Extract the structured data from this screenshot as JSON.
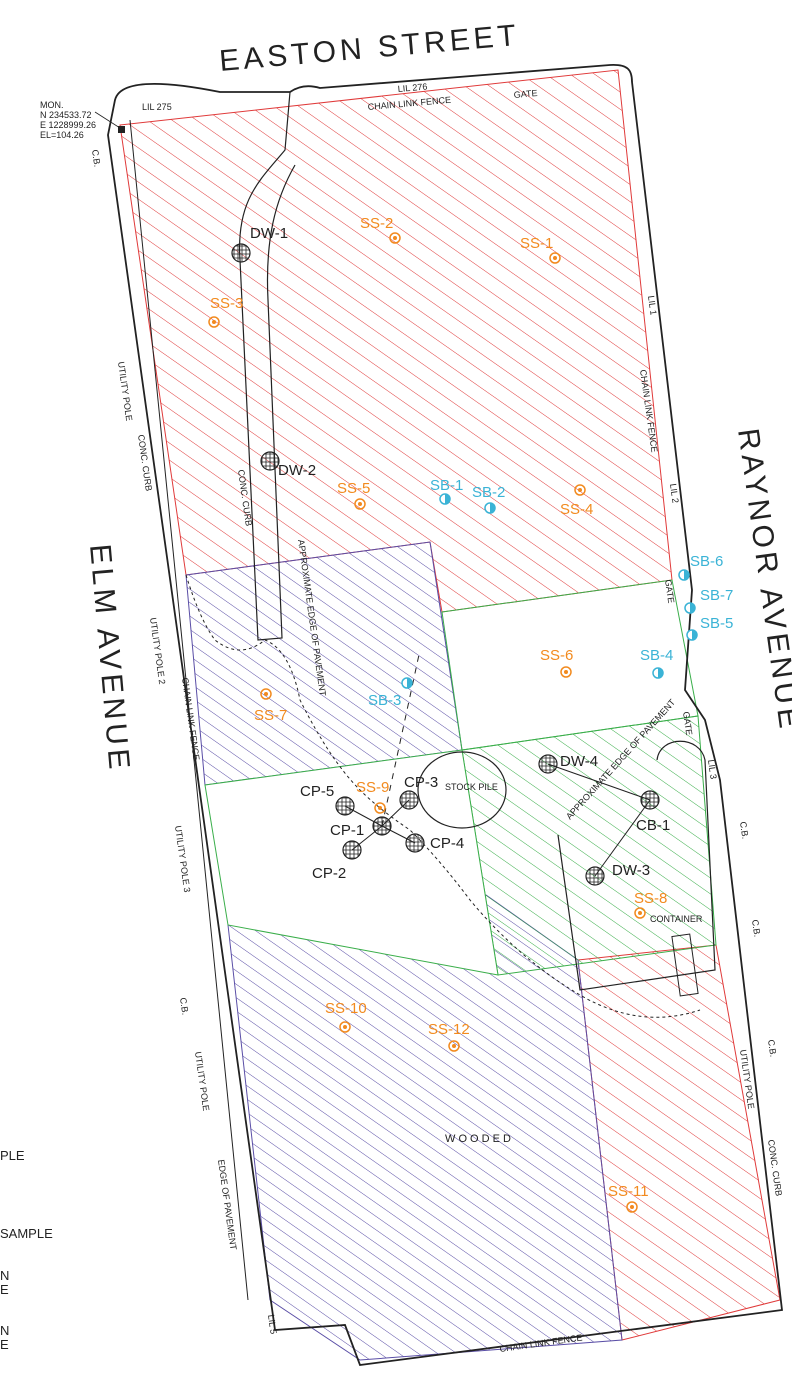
{
  "streets": {
    "north": "EASTON STREET",
    "west": "ELM AVENUE",
    "east": "RAYNOR AVENUE"
  },
  "monument": {
    "title": "MON.",
    "north": "N 234533.72",
    "east": "E 1228999.26",
    "elevation": "EL=104.26"
  },
  "notes": {
    "lil_275": "LIL 275",
    "lil_276": "LIL 276",
    "lil_1": "LIL 1",
    "lil_2": "LIL 2",
    "lil_3": "LIL 3",
    "lil_5": "LIL 5",
    "chain_link_fence": "CHAIN LINK FENCE",
    "gate": "GATE",
    "cb": "C.B.",
    "utility_pole": "UTILITY POLE",
    "utility_pole_2": "UTILITY POLE 2",
    "utility_pole_3": "UTILITY POLE 3",
    "conc_curb": "CONC. CURB",
    "approx_edge_pavement": "APPROXIMATE EDGE OF PAVEMENT",
    "edge_of_pavement": "EDGE OF PAVEMENT",
    "stock_pile": "STOCK PILE",
    "container": "CONTAINER",
    "wooded": "W O O D E D"
  },
  "colors": {
    "red_zone": "#e03a3a",
    "blue_zone": "#5a4ea6",
    "green_zone": "#3aae4a",
    "orange_sample": "#f28a1e",
    "cyan_boring": "#3ab3d6",
    "black_well": "#222222"
  },
  "dry_wells": [
    {
      "label": "DW-1"
    },
    {
      "label": "DW-2"
    },
    {
      "label": "DW-3"
    },
    {
      "label": "DW-4"
    }
  ],
  "cesspools": [
    {
      "label": "CP-1"
    },
    {
      "label": "CP-2"
    },
    {
      "label": "CP-3"
    },
    {
      "label": "CP-4"
    },
    {
      "label": "CP-5"
    }
  ],
  "catch_basin": {
    "label": "CB-1"
  },
  "surface_samples": [
    {
      "label": "SS-1"
    },
    {
      "label": "SS-2"
    },
    {
      "label": "SS-3"
    },
    {
      "label": "SS-4"
    },
    {
      "label": "SS-5"
    },
    {
      "label": "SS-6"
    },
    {
      "label": "SS-7"
    },
    {
      "label": "SS-8"
    },
    {
      "label": "SS-9"
    },
    {
      "label": "SS-10"
    },
    {
      "label": "SS-11"
    },
    {
      "label": "SS-12"
    }
  ],
  "soil_borings": [
    {
      "label": "SB-1"
    },
    {
      "label": "SB-2"
    },
    {
      "label": "SB-3"
    },
    {
      "label": "SB-4"
    },
    {
      "label": "SB-5"
    },
    {
      "label": "SB-6"
    },
    {
      "label": "SB-7"
    }
  ],
  "legend_fragments": [
    "PLE",
    "SAMPLE",
    "N",
    "E",
    "N",
    "E"
  ]
}
